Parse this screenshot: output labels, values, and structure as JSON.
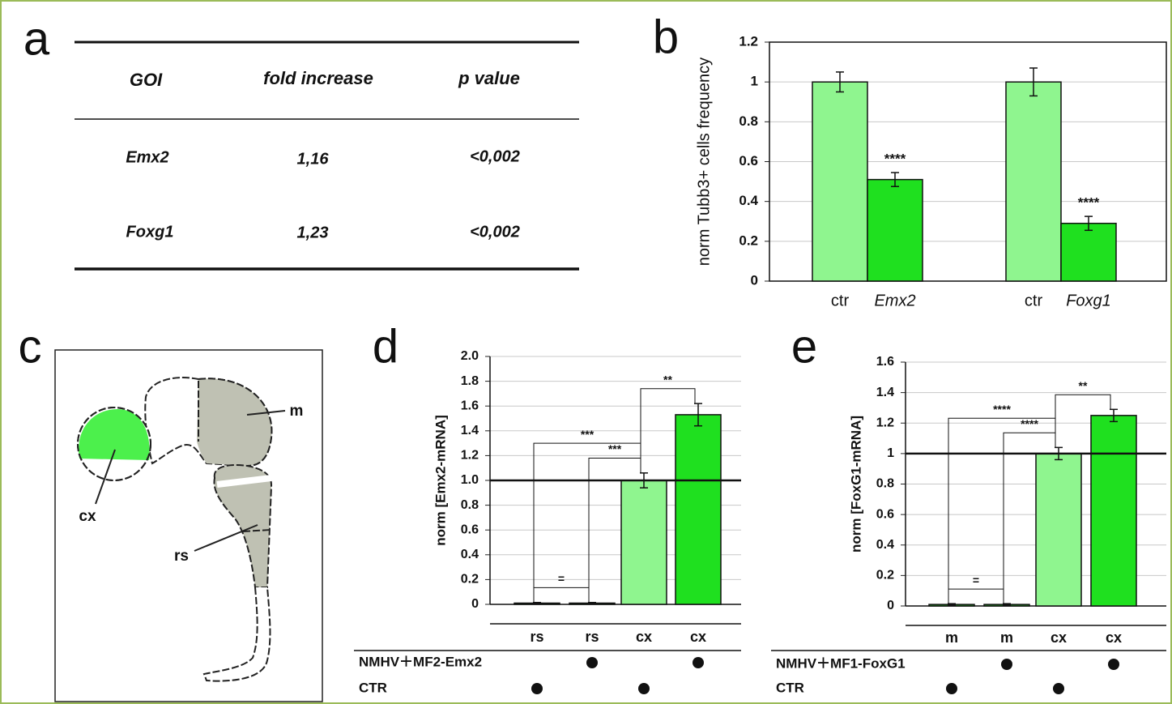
{
  "panel_labels": [
    "a",
    "b",
    "c",
    "d",
    "e"
  ],
  "table": {
    "header": [
      "GOI",
      "fold increase",
      "p value"
    ],
    "rows": [
      [
        "Emx2",
        "1,16",
        "<0,002"
      ],
      [
        "Foxg1",
        "1,23",
        "<0,002"
      ]
    ]
  },
  "diagram": {
    "labels": [
      "m",
      "cx",
      "rs"
    ]
  },
  "chart_data": [
    {
      "type": "bar",
      "y_label": "norm Tubb3+ cells frequency",
      "categories": [
        "ctr",
        "Emx2",
        "ctr",
        "Foxg1"
      ],
      "values": [
        1,
        0.51,
        1,
        0.29
      ],
      "errors": [
        0.05,
        0.035,
        0.07,
        0.035
      ],
      "colors": [
        "#8ff58f",
        "#1fe01f",
        "#8ff58f",
        "#1fe01f"
      ],
      "significance": [
        null,
        "****",
        null,
        "****"
      ],
      "ylim": [
        0,
        1.2
      ],
      "yticks": [
        0,
        0.2,
        0.4,
        0.6,
        0.8,
        1,
        1.2
      ],
      "grid": true
    },
    {
      "type": "bar",
      "y_label": "norm [Emx2-mRNA]",
      "categories": [
        "rs",
        "rs",
        "cx",
        "cx"
      ],
      "values": [
        0.01,
        0.01,
        1,
        1.53
      ],
      "errors": [
        0.005,
        0.005,
        0.06,
        0.09
      ],
      "colors": [
        "#1fe01f",
        "#1fe01f",
        "#8ff58f",
        "#1fe01f"
      ],
      "ylim": [
        0,
        2
      ],
      "yticks": [
        0,
        0.2,
        0.4,
        0.6,
        0.8,
        {
          "value": 1,
          "label": "1.0"
        },
        1.2,
        1.4,
        1.6,
        1.8,
        {
          "value": 2,
          "label": "2.0"
        }
      ],
      "grid": true,
      "ref_line": 1,
      "brackets": [
        {
          "from": 0,
          "to": 1,
          "label": "="
        },
        {
          "from": 1,
          "to": 2,
          "label": "***"
        },
        {
          "from": 0,
          "to": 2,
          "label": "***"
        },
        {
          "from": 2,
          "to": 3,
          "label": "**"
        }
      ],
      "conditions": [
        {
          "label": "NMHV＋MF2-Emx2",
          "marks": [
            false,
            true,
            false,
            true
          ]
        },
        {
          "label": "CTR",
          "marks": [
            true,
            false,
            true,
            false
          ]
        }
      ]
    },
    {
      "type": "bar",
      "y_label": "norm [FoxG1-mRNA]",
      "categories": [
        "m",
        "m",
        "cx",
        "cx"
      ],
      "values": [
        0.01,
        0.01,
        1,
        1.25
      ],
      "errors": [
        0.005,
        0.005,
        0.04,
        0.04
      ],
      "colors": [
        "#1fe01f",
        "#1fe01f",
        "#8ff58f",
        "#1fe01f"
      ],
      "ylim": [
        0,
        1.6
      ],
      "yticks": [
        0,
        0.2,
        0.4,
        0.6,
        0.8,
        1,
        1.2,
        1.4,
        1.6
      ],
      "grid": true,
      "ref_line": 1,
      "brackets": [
        {
          "from": 0,
          "to": 1,
          "label": "="
        },
        {
          "from": 1,
          "to": 2,
          "label": "****"
        },
        {
          "from": 0,
          "to": 2,
          "label": "****"
        },
        {
          "from": 2,
          "to": 3,
          "label": "**"
        }
      ],
      "conditions": [
        {
          "label": "NMHV＋MF1-FoxG1",
          "marks": [
            false,
            true,
            false,
            true
          ]
        },
        {
          "label": "CTR",
          "marks": [
            true,
            false,
            true,
            false
          ]
        }
      ]
    }
  ]
}
